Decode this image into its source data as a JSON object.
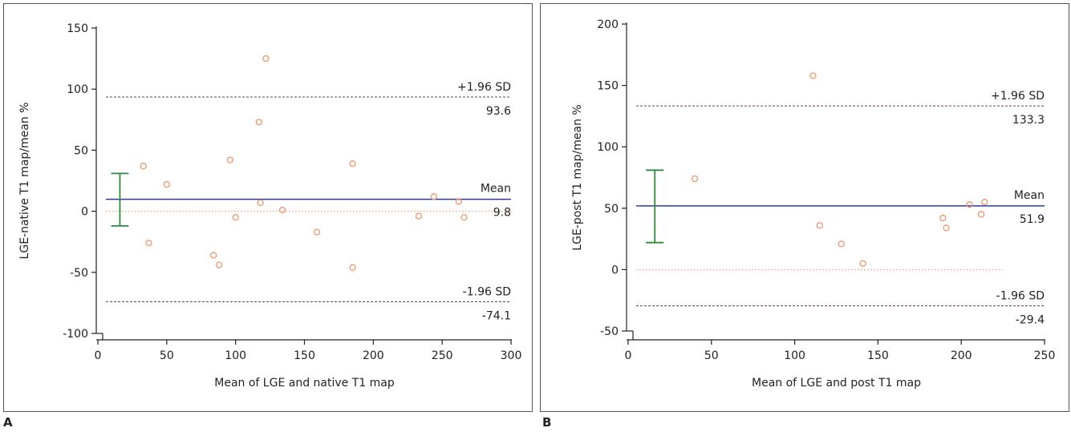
{
  "chart_data": [
    {
      "type": "scatter",
      "panel_label": "A",
      "xlabel": "Mean of LGE and native T1 map",
      "ylabel": "LGE-native T1 map/mean %",
      "xlim": [
        0,
        300
      ],
      "ylim": [
        -100,
        150
      ],
      "xticks": [
        0,
        50,
        100,
        150,
        200,
        250,
        300
      ],
      "yticks": [
        -100,
        -50,
        0,
        50,
        100,
        150
      ],
      "points": [
        {
          "x": 33,
          "y": 37
        },
        {
          "x": 37,
          "y": -26
        },
        {
          "x": 50,
          "y": 22
        },
        {
          "x": 84,
          "y": -36
        },
        {
          "x": 88,
          "y": -44
        },
        {
          "x": 96,
          "y": 42
        },
        {
          "x": 100,
          "y": -5
        },
        {
          "x": 117,
          "y": 73
        },
        {
          "x": 118,
          "y": 7
        },
        {
          "x": 122,
          "y": 125
        },
        {
          "x": 134,
          "y": 1
        },
        {
          "x": 159,
          "y": -17
        },
        {
          "x": 185,
          "y": 39
        },
        {
          "x": 185,
          "y": -46
        },
        {
          "x": 233,
          "y": -4
        },
        {
          "x": 244,
          "y": 12
        },
        {
          "x": 262,
          "y": 8
        },
        {
          "x": 266,
          "y": -5
        }
      ],
      "mean_line": {
        "label": "Mean",
        "value": 9.8,
        "value_text": "9.8"
      },
      "upper_limit": {
        "label": "+1.96 SD",
        "value": 93.6,
        "value_text": "93.6"
      },
      "lower_limit": {
        "label": "-1.96 SD",
        "value": -74.1,
        "value_text": "-74.1"
      },
      "zero_line": {
        "value": 0,
        "x_end": 300
      },
      "error_bar": {
        "x": 16,
        "low": -12,
        "high": 31
      },
      "grid": false,
      "colors": {
        "points": "#f0956a",
        "mean": "#2e3d8f",
        "limits": "#7a3b4a",
        "zero": "#f08a5a",
        "error_bar": "#2f8a3e"
      }
    },
    {
      "type": "scatter",
      "panel_label": "B",
      "xlabel": "Mean of LGE and post T1 map",
      "ylabel": "LGE-post T1 map/mean %",
      "xlim": [
        0,
        250
      ],
      "ylim": [
        -50,
        200
      ],
      "xticks": [
        0,
        50,
        100,
        150,
        200,
        250
      ],
      "yticks": [
        -50,
        0,
        50,
        100,
        150,
        200
      ],
      "points": [
        {
          "x": 40,
          "y": 74
        },
        {
          "x": 111,
          "y": 158
        },
        {
          "x": 115,
          "y": 36
        },
        {
          "x": 128,
          "y": 21
        },
        {
          "x": 141,
          "y": 5
        },
        {
          "x": 189,
          "y": 42
        },
        {
          "x": 191,
          "y": 34
        },
        {
          "x": 205,
          "y": 53
        },
        {
          "x": 212,
          "y": 45
        },
        {
          "x": 214,
          "y": 55
        }
      ],
      "mean_line": {
        "label": "Mean",
        "value": 51.9,
        "value_text": "51.9"
      },
      "upper_limit": {
        "label": "+1.96 SD",
        "value": 133.3,
        "value_text": "133.3"
      },
      "lower_limit": {
        "label": "-1.96 SD",
        "value": -29.4,
        "value_text": "-29.4"
      },
      "zero_line": {
        "value": 0,
        "x_end": 225
      },
      "error_bar": {
        "x": 16,
        "low": 22,
        "high": 81
      },
      "grid": false,
      "colors": {
        "points": "#f0956a",
        "mean": "#2e3d8f",
        "limits": "#7a3b4a",
        "zero": "#f08a5a",
        "error_bar": "#2f8a3e"
      }
    }
  ]
}
